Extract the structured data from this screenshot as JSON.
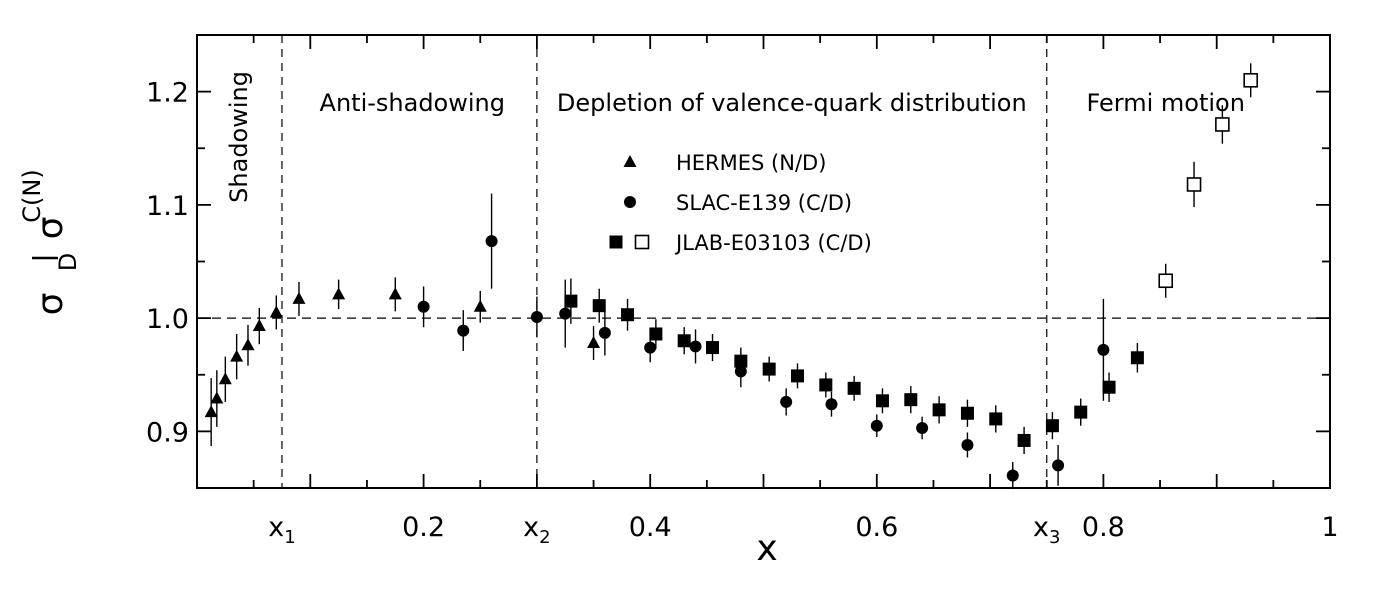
{
  "chart_data": {
    "type": "scatter",
    "title": "",
    "xlabel": "x",
    "ylabel_main": "σ",
    "ylabel_top": "C(N)",
    "ylabel_bottom": "D",
    "xlim": [
      0.0,
      1.0
    ],
    "ylim": [
      0.85,
      1.25
    ],
    "reference_line_y": 1.0,
    "xticks": [
      {
        "value": 0.075,
        "label": "x",
        "sub": "1"
      },
      {
        "value": 0.2,
        "label": "0.2",
        "sub": ""
      },
      {
        "value": 0.3,
        "label": "x",
        "sub": "2"
      },
      {
        "value": 0.4,
        "label": "0.4",
        "sub": ""
      },
      {
        "value": 0.6,
        "label": "0.6",
        "sub": ""
      },
      {
        "value": 0.75,
        "label": "x",
        "sub": "3"
      },
      {
        "value": 0.8,
        "label": "0.8",
        "sub": ""
      },
      {
        "value": 1.0,
        "label": "1",
        "sub": ""
      }
    ],
    "yticks": [
      {
        "value": 0.9,
        "label": "0.9"
      },
      {
        "value": 1.0,
        "label": "1.0"
      },
      {
        "value": 1.1,
        "label": "1.1"
      },
      {
        "value": 1.2,
        "label": "1.2"
      }
    ],
    "region_boundaries": [
      0.075,
      0.3,
      0.75
    ],
    "regions": [
      {
        "label": "Shadowing",
        "x": 0.037,
        "y": 1.16,
        "vertical": true
      },
      {
        "label": "Anti-shadowing",
        "x": 0.19,
        "y": 1.19,
        "vertical": false
      },
      {
        "label": "Depletion of valence-quark distribution",
        "x": 0.525,
        "y": 1.19,
        "vertical": false
      },
      {
        "label": "Fermi motion",
        "x": 0.855,
        "y": 1.19,
        "vertical": false
      }
    ],
    "legend": [
      {
        "label": "HERMES (N/D)",
        "marker": "triangle"
      },
      {
        "label": "SLAC-E139 (C/D)",
        "marker": "circle"
      },
      {
        "label": "JLAB-E03103 (C/D)",
        "marker": "square-filled-open"
      }
    ],
    "series": [
      {
        "name": "HERMES (N/D)",
        "marker": "triangle",
        "points": [
          {
            "x": 0.0125,
            "y": 0.917,
            "err": 0.03
          },
          {
            "x": 0.0175,
            "y": 0.929,
            "err": 0.025
          },
          {
            "x": 0.025,
            "y": 0.946,
            "err": 0.02
          },
          {
            "x": 0.035,
            "y": 0.966,
            "err": 0.02
          },
          {
            "x": 0.045,
            "y": 0.976,
            "err": 0.018
          },
          {
            "x": 0.055,
            "y": 0.993,
            "err": 0.016
          },
          {
            "x": 0.07,
            "y": 1.005,
            "err": 0.015
          },
          {
            "x": 0.09,
            "y": 1.017,
            "err": 0.015
          },
          {
            "x": 0.125,
            "y": 1.021,
            "err": 0.013
          },
          {
            "x": 0.175,
            "y": 1.021,
            "err": 0.015
          },
          {
            "x": 0.25,
            "y": 1.01,
            "err": 0.014
          },
          {
            "x": 0.35,
            "y": 0.978,
            "err": 0.015
          }
        ]
      },
      {
        "name": "SLAC-E139 (C/D)",
        "marker": "circle",
        "points": [
          {
            "x": 0.2,
            "y": 1.01,
            "err": 0.018
          },
          {
            "x": 0.235,
            "y": 0.989,
            "err": 0.018
          },
          {
            "x": 0.26,
            "y": 1.068,
            "err": 0.042
          },
          {
            "x": 0.3,
            "y": 1.001,
            "err": 0.018
          },
          {
            "x": 0.325,
            "y": 1.004,
            "err": 0.03
          },
          {
            "x": 0.36,
            "y": 0.987,
            "err": 0.02
          },
          {
            "x": 0.4,
            "y": 0.974,
            "err": 0.013
          },
          {
            "x": 0.44,
            "y": 0.975,
            "err": 0.015
          },
          {
            "x": 0.48,
            "y": 0.953,
            "err": 0.014
          },
          {
            "x": 0.52,
            "y": 0.926,
            "err": 0.012
          },
          {
            "x": 0.56,
            "y": 0.924,
            "err": 0.011
          },
          {
            "x": 0.6,
            "y": 0.905,
            "err": 0.01
          },
          {
            "x": 0.64,
            "y": 0.903,
            "err": 0.01
          },
          {
            "x": 0.68,
            "y": 0.888,
            "err": 0.011
          },
          {
            "x": 0.72,
            "y": 0.861,
            "err": 0.012
          },
          {
            "x": 0.76,
            "y": 0.87,
            "err": 0.018
          },
          {
            "x": 0.8,
            "y": 0.972,
            "err": 0.045
          }
        ]
      },
      {
        "name": "JLAB-E03103 (C/D)",
        "marker": "square",
        "points": [
          {
            "x": 0.33,
            "y": 1.015,
            "err": 0.02
          },
          {
            "x": 0.355,
            "y": 1.011,
            "err": 0.015
          },
          {
            "x": 0.38,
            "y": 1.003,
            "err": 0.014
          },
          {
            "x": 0.405,
            "y": 0.986,
            "err": 0.013
          },
          {
            "x": 0.43,
            "y": 0.98,
            "err": 0.012
          },
          {
            "x": 0.455,
            "y": 0.974,
            "err": 0.012
          },
          {
            "x": 0.48,
            "y": 0.962,
            "err": 0.012
          },
          {
            "x": 0.505,
            "y": 0.955,
            "err": 0.011
          },
          {
            "x": 0.53,
            "y": 0.949,
            "err": 0.011
          },
          {
            "x": 0.555,
            "y": 0.941,
            "err": 0.011
          },
          {
            "x": 0.58,
            "y": 0.938,
            "err": 0.011
          },
          {
            "x": 0.605,
            "y": 0.927,
            "err": 0.011
          },
          {
            "x": 0.63,
            "y": 0.928,
            "err": 0.012
          },
          {
            "x": 0.655,
            "y": 0.919,
            "err": 0.012
          },
          {
            "x": 0.68,
            "y": 0.916,
            "err": 0.012
          },
          {
            "x": 0.705,
            "y": 0.911,
            "err": 0.012
          },
          {
            "x": 0.73,
            "y": 0.892,
            "err": 0.012
          },
          {
            "x": 0.755,
            "y": 0.905,
            "err": 0.012
          },
          {
            "x": 0.78,
            "y": 0.917,
            "err": 0.012
          },
          {
            "x": 0.805,
            "y": 0.939,
            "err": 0.013
          },
          {
            "x": 0.83,
            "y": 0.965,
            "err": 0.013
          }
        ]
      },
      {
        "name": "JLAB-E03103 (C/D) open",
        "marker": "square-open",
        "points": [
          {
            "x": 0.855,
            "y": 1.033,
            "err": 0.015
          },
          {
            "x": 0.88,
            "y": 1.118,
            "err": 0.02
          },
          {
            "x": 0.905,
            "y": 1.171,
            "err": 0.017
          },
          {
            "x": 0.93,
            "y": 1.21,
            "err": 0.015
          }
        ]
      }
    ]
  }
}
